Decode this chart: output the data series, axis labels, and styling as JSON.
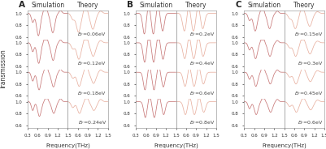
{
  "panels": [
    "A",
    "B",
    "C"
  ],
  "panel_labels_A": [
    "E_F=0.06eV",
    "E_F=0.12eV",
    "E_F=0.18eV",
    "E_F=0.24eV"
  ],
  "panel_labels_B": [
    "E_F=0.2eV",
    "E_F=0.4eV",
    "E_F=0.6eV",
    "E_F=0.8eV"
  ],
  "panel_labels_C": [
    "E_F=0.15eV",
    "E_F=0.3eV",
    "E_F=0.45eV",
    "E_F=0.6eV"
  ],
  "sim_color": "#c87878",
  "theory_color": "#e8b0a0",
  "freq_min": 0.3,
  "freq_max": 1.5,
  "ylim": [
    0.55,
    1.05
  ],
  "yticks": [
    0.6,
    0.8,
    1.0
  ],
  "xticks_sim": [
    0.3,
    0.6,
    0.9,
    1.2,
    1.5
  ],
  "xticks_theory": [
    0.6,
    0.9,
    1.2,
    1.5
  ],
  "xlabel": "Frequency(THz)",
  "ylabel": "Transmission",
  "background_color": "#ffffff",
  "title_fontsize": 5.5,
  "label_fontsize": 4.5,
  "tick_fontsize": 4.0,
  "panel_letter_fontsize": 7.5
}
